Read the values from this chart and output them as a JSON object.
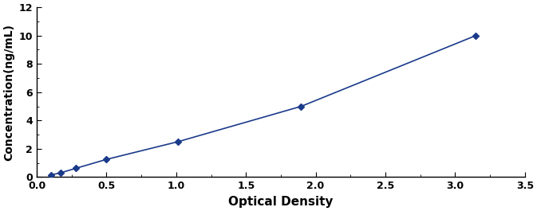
{
  "x": [
    0.105,
    0.173,
    0.282,
    0.499,
    1.012,
    1.896,
    3.148
  ],
  "y": [
    0.156,
    0.312,
    0.625,
    1.25,
    2.5,
    5.0,
    10.0
  ],
  "line_color": "#1a3a8a",
  "marker_color": "#1a3a8a",
  "marker": "D",
  "marker_size": 4,
  "line_width": 1.2,
  "xlabel": "Optical Density",
  "ylabel": "Concentration(ng/mL)",
  "xlim": [
    0,
    3.5
  ],
  "ylim": [
    0,
    12
  ],
  "xticks": [
    0,
    0.5,
    1.0,
    1.5,
    2.0,
    2.5,
    3.0,
    3.5
  ],
  "yticks": [
    0,
    2,
    4,
    6,
    8,
    10,
    12
  ],
  "xlabel_fontsize": 11,
  "ylabel_fontsize": 10,
  "tick_fontsize": 9,
  "tick_fontweight": "bold",
  "label_fontweight": "bold",
  "background_color": "#ffffff",
  "spine_color": "#000000"
}
